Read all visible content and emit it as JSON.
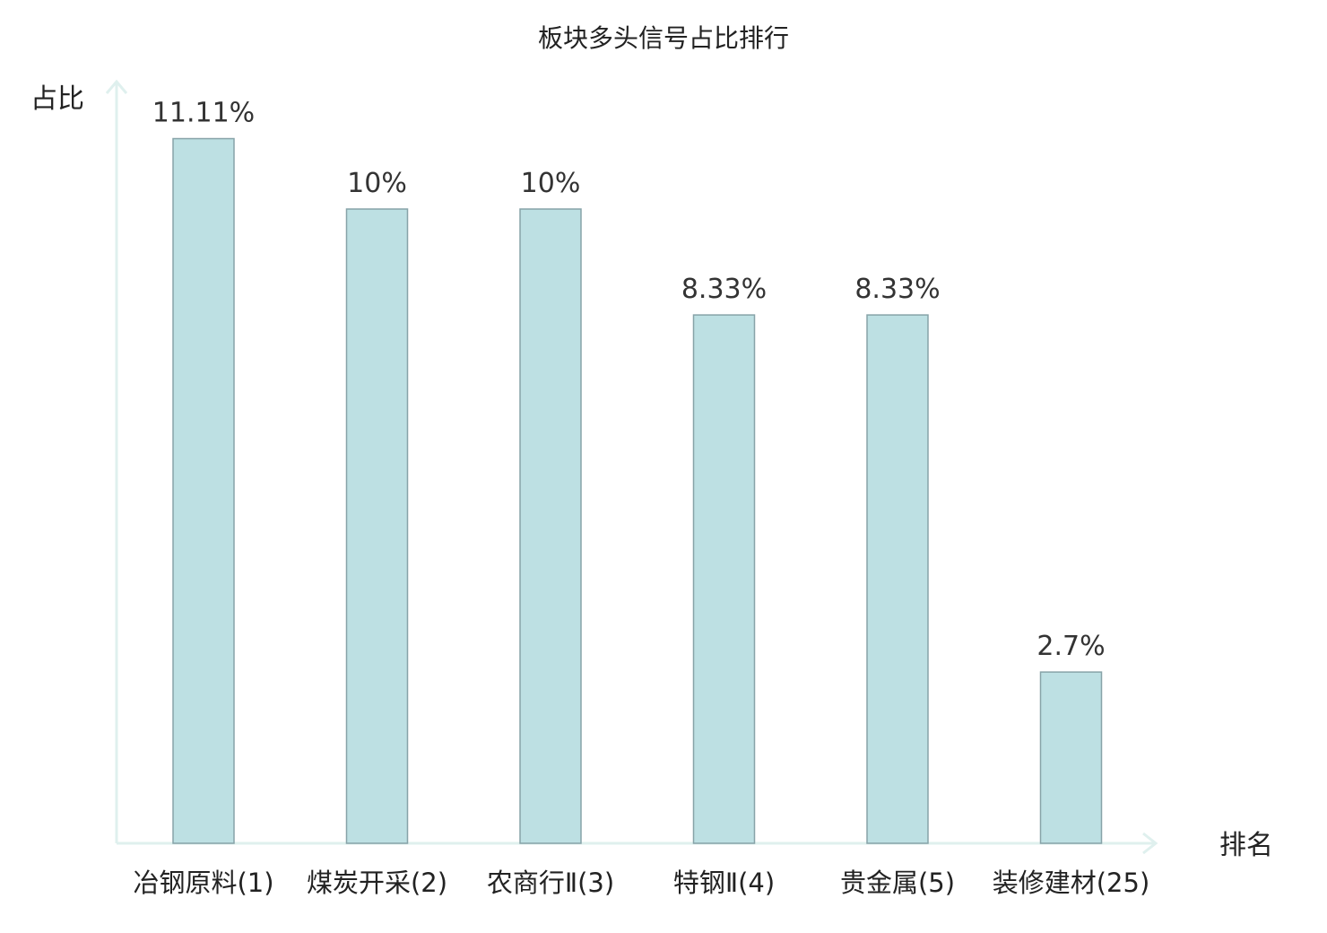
{
  "chart_data": {
    "type": "bar",
    "title": "板块多头信号占比排行",
    "xlabel": "排名",
    "ylabel": "占比",
    "categories": [
      "冶钢原料(1)",
      "煤炭开采(2)",
      "农商行Ⅱ(3)",
      "特钢Ⅱ(4)",
      "贵金属(5)",
      "装修建材(25)"
    ],
    "values": [
      11.11,
      10,
      10,
      8.33,
      8.33,
      2.7
    ],
    "value_labels": [
      "11.11%",
      "10%",
      "10%",
      "8.33%",
      "8.33%",
      "2.7%"
    ],
    "highlight_index": 5,
    "ylim": [
      0,
      12
    ],
    "grid": false,
    "legend": "none"
  },
  "colors": {
    "bar_fill": "#bde0e3",
    "bar_stroke": "#87a3a8",
    "axis": "#dff0ee",
    "highlight_text": "#e0161c",
    "text": "#222222",
    "value_text": "#333333"
  }
}
